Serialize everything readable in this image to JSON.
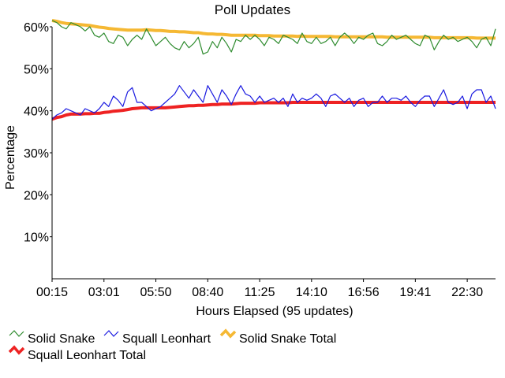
{
  "chart_data": {
    "type": "line",
    "title": "Poll Updates",
    "xlabel": "Hours Elapsed (95 updates)",
    "ylabel": "Percentage",
    "xlim": [
      0,
      94
    ],
    "ylim": [
      0,
      60
    ],
    "y_ticks": [
      10,
      20,
      30,
      40,
      50,
      60
    ],
    "y_tick_labels": [
      "10%",
      "20%",
      "30%",
      "40%",
      "50%",
      "60%"
    ],
    "x_ticks": [
      0,
      11,
      22,
      33,
      44,
      55,
      66,
      77,
      88
    ],
    "x_tick_labels": [
      "00:15",
      "03:01",
      "05:50",
      "08:40",
      "11:25",
      "14:10",
      "16:56",
      "19:41",
      "22:30"
    ],
    "grid": false,
    "legend": "bottom",
    "series": [
      {
        "name": "Solid Snake",
        "color": "#2e8b2e",
        "values": [
          61.5,
          61.0,
          60.0,
          59.5,
          61.0,
          60.5,
          60.0,
          59.0,
          60.0,
          58.0,
          57.5,
          58.5,
          56.5,
          56.0,
          58.0,
          57.5,
          55.5,
          57.0,
          58.0,
          57.0,
          59.5,
          57.5,
          55.5,
          56.5,
          57.5,
          56.0,
          55.0,
          54.5,
          56.5,
          55.0,
          56.0,
          57.5,
          53.5,
          54.0,
          56.5,
          55.0,
          57.5,
          56.0,
          54.0,
          57.0,
          56.5,
          58.0,
          57.0,
          58.0,
          57.0,
          55.5,
          57.5,
          57.0,
          56.0,
          58.0,
          57.5,
          57.0,
          56.0,
          58.5,
          56.5,
          56.0,
          57.5,
          56.0,
          56.5,
          57.5,
          55.5,
          57.5,
          58.5,
          57.5,
          56.0,
          57.5,
          57.0,
          58.0,
          58.5,
          56.0,
          55.5,
          56.5,
          58.0,
          57.0,
          57.5,
          58.0,
          57.0,
          56.0,
          55.5,
          58.0,
          57.5,
          54.5,
          56.5,
          58.0,
          57.0,
          57.5,
          56.5,
          57.0,
          57.5,
          56.5,
          55.0,
          57.0,
          57.5,
          55.5,
          59.5
        ]
      },
      {
        "name": "Squall Leonhart",
        "color": "#1a1ae0",
        "values": [
          38.0,
          39.0,
          39.5,
          40.5,
          40.0,
          39.5,
          39.0,
          40.5,
          40.0,
          39.5,
          40.5,
          42.0,
          41.0,
          43.5,
          42.5,
          41.0,
          44.5,
          45.5,
          42.0,
          42.0,
          41.0,
          40.0,
          40.5,
          41.0,
          42.0,
          43.0,
          44.0,
          46.0,
          44.5,
          43.0,
          45.0,
          43.5,
          42.0,
          46.0,
          44.0,
          42.0,
          45.0,
          43.5,
          41.5,
          44.0,
          46.0,
          44.0,
          43.5,
          42.0,
          43.5,
          42.0,
          42.5,
          43.0,
          42.0,
          43.0,
          41.0,
          44.0,
          42.0,
          43.0,
          42.5,
          43.0,
          44.0,
          43.0,
          41.0,
          43.5,
          44.0,
          43.0,
          42.0,
          43.0,
          41.0,
          42.5,
          43.0,
          41.0,
          42.0,
          42.0,
          43.5,
          42.0,
          43.0,
          43.0,
          42.5,
          43.5,
          42.0,
          41.0,
          42.5,
          43.5,
          43.5,
          41.0,
          43.0,
          45.0,
          42.0,
          41.5,
          42.0,
          43.5,
          40.5,
          44.0,
          45.0,
          45.0,
          42.0,
          43.5,
          40.5
        ]
      },
      {
        "name": "Solid Snake Total",
        "color": "#f5b833",
        "values": [
          61.5,
          61.3,
          61.0,
          60.8,
          60.7,
          60.6,
          60.5,
          60.4,
          60.3,
          60.1,
          59.9,
          59.8,
          59.6,
          59.5,
          59.4,
          59.3,
          59.2,
          59.2,
          59.2,
          59.2,
          59.3,
          59.2,
          59.1,
          59.1,
          59.0,
          58.9,
          58.9,
          58.8,
          58.8,
          58.7,
          58.6,
          58.6,
          58.4,
          58.3,
          58.3,
          58.2,
          58.2,
          58.1,
          58.0,
          58.0,
          58.0,
          58.0,
          58.0,
          58.0,
          57.9,
          57.9,
          57.9,
          57.8,
          57.8,
          57.8,
          57.8,
          57.8,
          57.7,
          57.8,
          57.7,
          57.7,
          57.7,
          57.7,
          57.7,
          57.7,
          57.6,
          57.6,
          57.6,
          57.6,
          57.6,
          57.6,
          57.6,
          57.6,
          57.6,
          57.6,
          57.6,
          57.5,
          57.5,
          57.5,
          57.5,
          57.5,
          57.5,
          57.5,
          57.5,
          57.5,
          57.5,
          57.4,
          57.4,
          57.4,
          57.4,
          57.4,
          57.4,
          57.4,
          57.4,
          57.4,
          57.3,
          57.3,
          57.3,
          57.3,
          57.3
        ]
      },
      {
        "name": "Squall Leonhart Total",
        "color": "#ee2222",
        "values": [
          38.0,
          38.4,
          38.6,
          39.0,
          39.2,
          39.2,
          39.2,
          39.3,
          39.3,
          39.4,
          39.4,
          39.6,
          39.7,
          39.9,
          40.0,
          40.1,
          40.3,
          40.5,
          40.6,
          40.7,
          40.7,
          40.7,
          40.7,
          40.7,
          40.7,
          40.8,
          40.9,
          41.0,
          41.1,
          41.2,
          41.2,
          41.3,
          41.3,
          41.4,
          41.5,
          41.5,
          41.6,
          41.6,
          41.6,
          41.7,
          41.8,
          41.8,
          41.8,
          41.8,
          41.9,
          41.9,
          41.9,
          41.9,
          41.9,
          41.9,
          41.9,
          42.0,
          42.0,
          42.0,
          42.0,
          42.0,
          42.0,
          42.0,
          42.0,
          42.0,
          42.0,
          42.0,
          42.0,
          42.0,
          42.0,
          42.0,
          42.0,
          42.0,
          42.0,
          42.0,
          42.0,
          42.0,
          42.0,
          42.0,
          42.0,
          42.0,
          42.0,
          42.0,
          42.0,
          42.0,
          42.0,
          42.0,
          42.0,
          42.0,
          42.0,
          42.0,
          42.0,
          42.0,
          42.0,
          42.0,
          42.0,
          42.0,
          42.0,
          42.0,
          42.0
        ]
      }
    ]
  }
}
